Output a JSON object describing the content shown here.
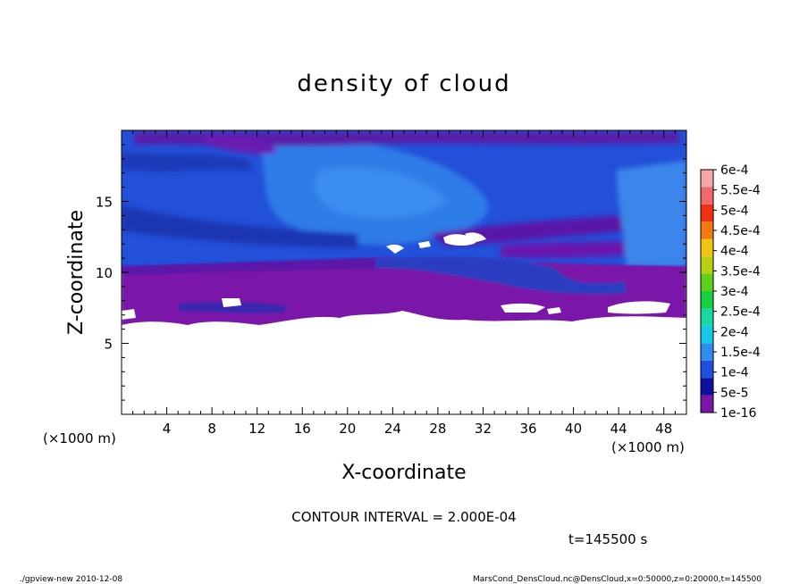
{
  "chart_data": {
    "type": "heatmap",
    "title": "density of cloud",
    "xlabel": "X-coordinate",
    "ylabel": "Z-coordinate",
    "x_unit_left": "(×1000 m)",
    "x_unit_right": "(×1000 m)",
    "xlim": [
      0,
      50
    ],
    "ylim": [
      0,
      20
    ],
    "xticks": [
      4,
      8,
      12,
      16,
      20,
      24,
      28,
      32,
      36,
      40,
      44,
      48
    ],
    "yticks": [
      5,
      10,
      15
    ],
    "colorbar": {
      "levels": [
        "1e-16",
        "5e-5",
        "1e-4",
        "1.5e-4",
        "2e-4",
        "2.5e-4",
        "3e-4",
        "3.5e-4",
        "4e-4",
        "4.5e-4",
        "5e-4",
        "5.5e-4",
        "6e-4"
      ],
      "colors": [
        "#7a16a8",
        "#1010a0",
        "#1f4fe0",
        "#2f8cf0",
        "#16c8e8",
        "#1ad7a0",
        "#16d040",
        "#5fd01a",
        "#b8d010",
        "#f0c410",
        "#f07a10",
        "#f03010",
        "#f06868",
        "#f5a6a6"
      ]
    },
    "field": {
      "white_region_below_km": 6,
      "purple_band_km": [
        6,
        10
      ],
      "blue_region_km": [
        10,
        20
      ]
    }
  },
  "annotations": {
    "contour_interval": "CONTOUR INTERVAL = 2.000E-04",
    "time": "t=145500 s"
  },
  "footer": {
    "left": "./gpview-new  2010-12-08",
    "right": "MarsCond_DensCloud.nc@DensCloud,x=0:50000,z=0:20000,t=145500"
  }
}
